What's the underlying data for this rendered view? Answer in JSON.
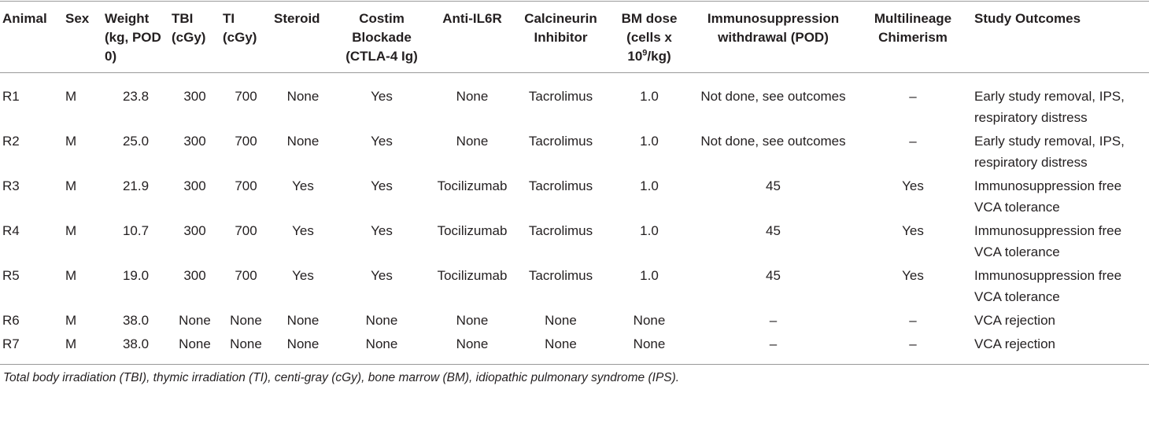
{
  "table": {
    "headers": [
      "Animal",
      "Sex",
      "Weight (kg, POD 0)",
      "TBI (cGy)",
      "TI (cGy)",
      "Steroid",
      "Costim Blockade (CTLA-4 Ig)",
      "Anti-IL6R",
      "Calcineurin Inhibitor",
      [
        "BM dose (cells x 10",
        "9",
        "/kg)"
      ],
      "Immunosuppression withdrawal (POD)",
      "Multilineage Chimerism",
      "Study Outcomes"
    ],
    "rows": [
      [
        "R1",
        "M",
        "23.8",
        "300",
        "700",
        "None",
        "Yes",
        "None",
        "Tacrolimus",
        "1.0",
        "Not done, see outcomes",
        "–",
        "Early study removal, IPS, respiratory distress"
      ],
      [
        "R2",
        "M",
        "25.0",
        "300",
        "700",
        "None",
        "Yes",
        "None",
        "Tacrolimus",
        "1.0",
        "Not done, see outcomes",
        "–",
        "Early study removal, IPS, respiratory distress"
      ],
      [
        "R3",
        "M",
        "21.9",
        "300",
        "700",
        "Yes",
        "Yes",
        "Tocilizumab",
        "Tacrolimus",
        "1.0",
        "45",
        "Yes",
        "Immunosuppression free VCA tolerance"
      ],
      [
        "R4",
        "M",
        "10.7",
        "300",
        "700",
        "Yes",
        "Yes",
        "Tocilizumab",
        "Tacrolimus",
        "1.0",
        "45",
        "Yes",
        "Immunosuppression free VCA tolerance"
      ],
      [
        "R5",
        "M",
        "19.0",
        "300",
        "700",
        "Yes",
        "Yes",
        "Tocilizumab",
        "Tacrolimus",
        "1.0",
        "45",
        "Yes",
        "Immunosuppression free VCA tolerance"
      ],
      [
        "R6",
        "M",
        "38.0",
        "None",
        "None",
        "None",
        "None",
        "None",
        "None",
        "None",
        "–",
        "–",
        "VCA rejection"
      ],
      [
        "R7",
        "M",
        "38.0",
        "None",
        "None",
        "None",
        "None",
        "None",
        "None",
        "None",
        "–",
        "–",
        "VCA rejection"
      ]
    ],
    "footnote": "Total body irradiation (TBI), thymic irradiation (TI), centi-gray (cGy), bone marrow (BM), idiopathic pulmonary syndrome (IPS)."
  }
}
